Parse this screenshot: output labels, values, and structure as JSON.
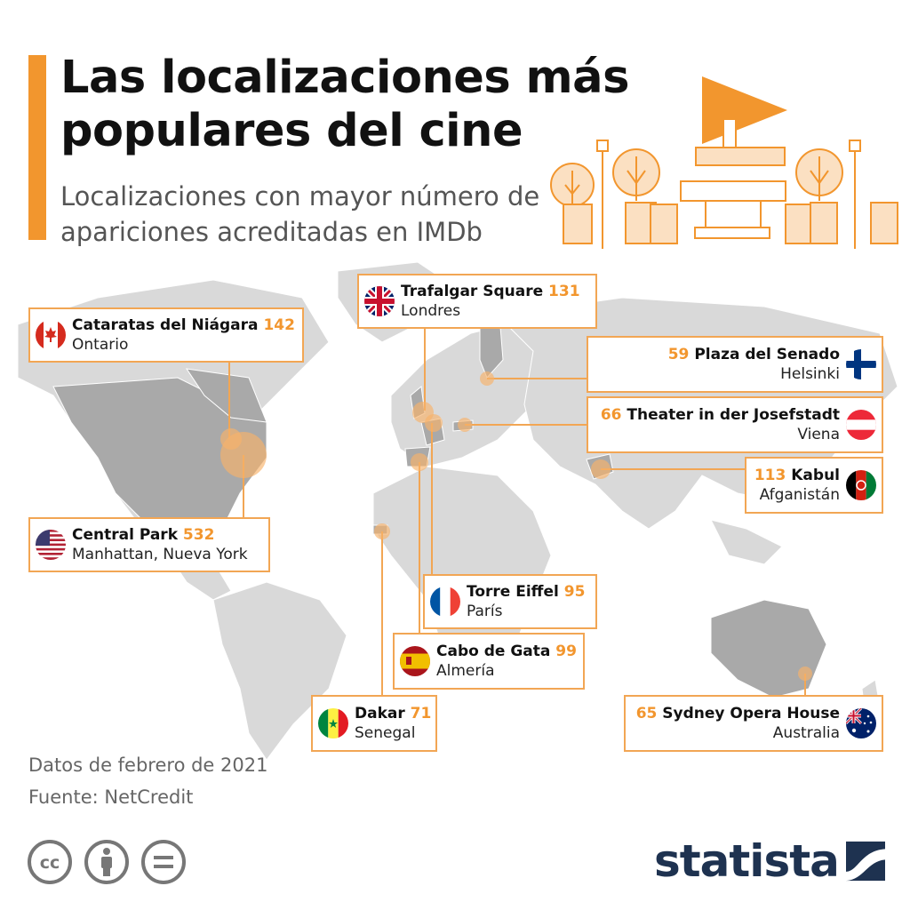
{
  "title": "Las localizaciones más populares del cine",
  "subtitle": "Localizaciones con mayor número de apariciones acreditadas en IMDb",
  "colors": {
    "accent": "#f2962e",
    "land": "#d9d9d9",
    "highlight": "#a9a9a9",
    "marker": "#f7b26a",
    "logo": "#1e3250"
  },
  "locations": [
    {
      "name": "Cataratas del Niágara",
      "value": "142",
      "place": "Ontario",
      "flag": "canada-flag-icon"
    },
    {
      "name": "Trafalgar Square",
      "value": "131",
      "place": "Londres",
      "flag": "uk-flag-icon"
    },
    {
      "name": "Plaza del Senado",
      "value": "59",
      "place": "Helsinki",
      "flag": "finland-flag-icon"
    },
    {
      "name": "Theater in der Josefstadt",
      "value": "66",
      "place": "Viena",
      "flag": "austria-flag-icon"
    },
    {
      "name": "Kabul",
      "value": "113",
      "place": "Afganistán",
      "flag": "afghanistan-flag-icon"
    },
    {
      "name": "Central Park",
      "value": "532",
      "place": "Manhattan, Nueva York",
      "flag": "usa-flag-icon"
    },
    {
      "name": "Torre Eiffel",
      "value": "95",
      "place": "París",
      "flag": "france-flag-icon"
    },
    {
      "name": "Cabo de Gata",
      "value": "99",
      "place": "Almería",
      "flag": "spain-flag-icon"
    },
    {
      "name": "Dakar",
      "value": "71",
      "place": "Senegal",
      "flag": "senegal-flag-icon"
    },
    {
      "name": "Sydney Opera House",
      "value": "65",
      "place": "Australia",
      "flag": "australia-flag-icon"
    }
  ],
  "footer": {
    "date_note": "Datos de febrero de 2021",
    "source": "Fuente: NetCredit",
    "license_icons": [
      "cc-icon",
      "by-icon",
      "nd-icon"
    ],
    "brand": "statista"
  }
}
